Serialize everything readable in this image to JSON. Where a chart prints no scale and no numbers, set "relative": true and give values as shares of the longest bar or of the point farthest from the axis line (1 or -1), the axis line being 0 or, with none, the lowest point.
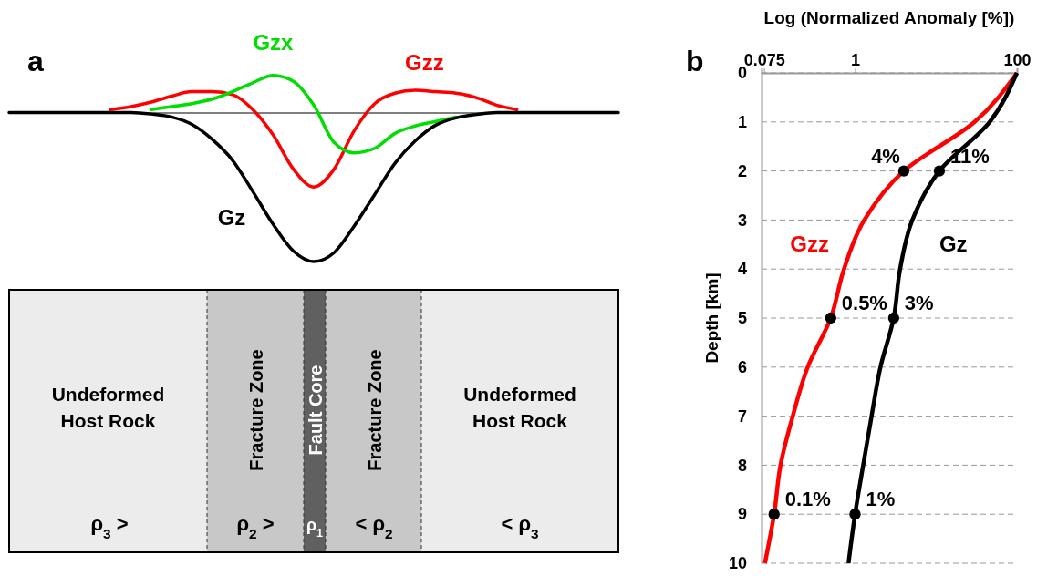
{
  "chart_data": [
    {
      "type": "line",
      "title": "a",
      "relative": true,
      "categories": [
        null,
        null,
        null,
        null,
        null,
        null,
        null,
        null,
        null,
        null,
        null,
        null,
        null,
        null,
        null,
        null,
        null,
        null,
        null,
        null,
        null,
        null,
        null,
        null,
        null,
        null,
        null,
        null,
        null,
        null,
        null
      ],
      "series": [
        {
          "name": "Gz",
          "color": "#000000",
          "values": [
            0,
            0,
            0,
            0,
            0,
            0,
            0,
            -0.01,
            -0.03,
            -0.08,
            -0.18,
            -0.32,
            -0.53,
            -0.75,
            -0.93,
            -1,
            -0.94,
            -0.76,
            -0.55,
            -0.34,
            -0.19,
            -0.085,
            -0.036,
            -0.013,
            0,
            0,
            0,
            0,
            0,
            0,
            0
          ]
        },
        {
          "name": "Gzx",
          "color": "#00dd00",
          "values": [
            null,
            null,
            null,
            null,
            null,
            null,
            null,
            0.02,
            0.04,
            0.06,
            0.09,
            0.14,
            0.2,
            0.25,
            0.21,
            0.05,
            -0.2,
            -0.27,
            -0.24,
            -0.14,
            -0.09,
            -0.06,
            -0.03,
            null,
            null,
            null,
            null,
            null,
            null,
            null,
            null
          ]
        },
        {
          "name": "Gzz",
          "color": "#ff0000",
          "values": [
            null,
            null,
            null,
            null,
            null,
            0.02,
            0.04,
            0.07,
            0.11,
            0.14,
            0.14,
            0.12,
            0.02,
            -0.15,
            -0.38,
            -0.5,
            -0.38,
            -0.12,
            0.06,
            0.13,
            0.15,
            0.14,
            0.13,
            0.1,
            0.05,
            0.02,
            null,
            null,
            null,
            null,
            null
          ]
        }
      ]
    },
    {
      "type": "other",
      "annotations": [
        "Undeformed Host Rock",
        "Fracture Zone",
        "Fault Core",
        "Fracture Zone",
        "Undeformed Host Rock",
        "ρ$_{3}$ >",
        "ρ$_{2}$ >",
        "ρ$_{1}$",
        "< ρ$_{2}$",
        "< ρ$_{3}$"
      ]
    },
    {
      "type": "line",
      "title": "b",
      "xlabel": "Log (Normalized Anomaly [%])",
      "ylabel": "Depth [km]",
      "orientation": "horizontal",
      "log": "x",
      "xlim": [
        0.07,
        100
      ],
      "xticks": [
        0.075,
        1,
        100
      ],
      "ylim": [
        10,
        0
      ],
      "yticks": [
        0,
        1,
        2,
        3,
        4,
        5,
        6,
        7,
        8,
        9,
        10
      ],
      "grid": "y",
      "series": [
        {
          "name": "Gzz",
          "color": "#ff0000",
          "x": [
            0,
            1,
            2,
            3,
            4,
            5,
            6,
            7,
            8,
            9,
            10
          ],
          "values": [
            100,
            30,
            4,
            1.3,
            0.73,
            0.5,
            0.26,
            0.17,
            0.12,
            0.1,
            0.077
          ]
        },
        {
          "name": "Gz",
          "color": "#000000",
          "x": [
            0,
            1,
            2,
            3,
            4,
            5,
            6,
            7,
            8,
            9,
            10
          ],
          "values": [
            100,
            46,
            11,
            5.1,
            3.6,
            3,
            2.06,
            1.6,
            1.26,
            1,
            0.83
          ]
        },
        {
          "type": "scatter",
          "marker": "circle",
          "color": "#000000",
          "x": [
            2,
            5,
            9
          ],
          "values": [
            4,
            0.5,
            0.1
          ],
          "value_labels": [
            "4%",
            "0.5%",
            "0.1%"
          ]
        },
        {
          "type": "scatter",
          "marker": "circle",
          "color": "#000000",
          "x": [
            2,
            5,
            9
          ],
          "values": [
            11,
            3,
            1
          ],
          "value_labels": [
            "11%",
            "3%",
            "1%"
          ]
        }
      ]
    }
  ]
}
